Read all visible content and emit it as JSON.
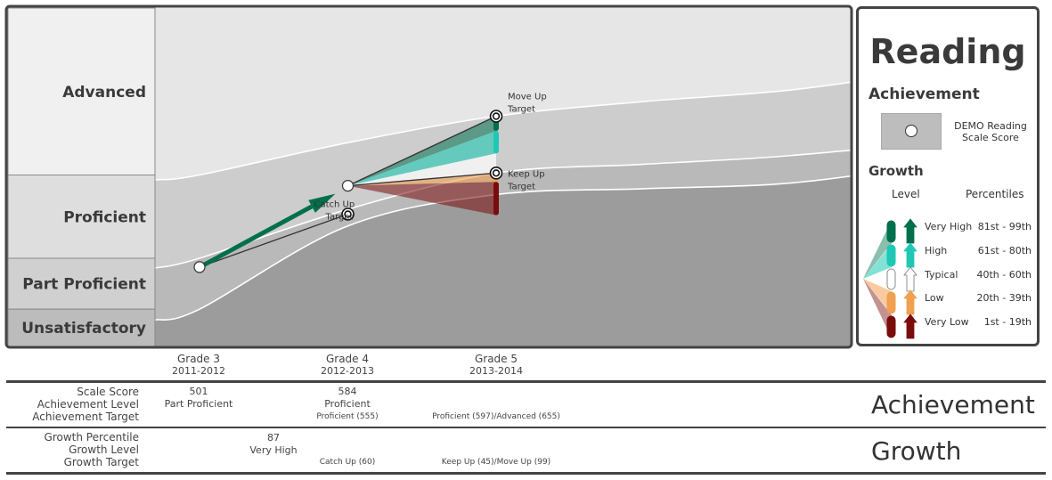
{
  "chart_data": {
    "type": "area",
    "subject": "Reading",
    "achievement_levels": [
      "Advanced",
      "Proficient",
      "Part Proficient",
      "Unsatisfactory"
    ],
    "grades": [
      {
        "label": "Grade 3",
        "year": "2011-2012"
      },
      {
        "label": "Grade 4",
        "year": "2012-2013"
      },
      {
        "label": "Grade 5",
        "year": "2013-2014"
      }
    ],
    "band_cut_scores": {
      "x": [
        2.7,
        3.0,
        4.0,
        5.0,
        6.0,
        7.0,
        8.0,
        9.0,
        9.3
      ],
      "unsat_part": [
        447,
        458,
        543,
        575,
        581,
        587,
        608,
        633,
        633
      ],
      "part_prof": [
        500,
        510,
        560,
        597,
        606,
        615,
        632,
        666,
        666
      ],
      "prof_adv": [
        590,
        595,
        628,
        655,
        670,
        682,
        703,
        721,
        721
      ]
    },
    "scale_scores": [
      {
        "grade": 3,
        "score": 501
      },
      {
        "grade": 4,
        "score": 584
      }
    ],
    "targets": [
      {
        "grade": 4,
        "score": 555,
        "label": "Catch Up Target"
      },
      {
        "grade": 5,
        "score": 655,
        "label": "Move Up Target"
      },
      {
        "grade": 5,
        "score": 597,
        "label": "Keep Up Target"
      }
    ],
    "growth_fan": [
      {
        "level": "Very High",
        "from": 640,
        "to": 655,
        "color": "#006f4c"
      },
      {
        "level": "High",
        "from": 617,
        "to": 640,
        "color": "#1ec8b4"
      },
      {
        "level": "Typical",
        "from": 597,
        "to": 617,
        "color": "#ffffff"
      },
      {
        "level": "Low",
        "from": 588,
        "to": 597,
        "color": "#f0a050"
      },
      {
        "level": "Very Low",
        "from": 554,
        "to": 588,
        "color": "#7a0c0c"
      }
    ],
    "ylim": [
      420,
      740
    ]
  },
  "legend": {
    "title": "Reading",
    "achievement_heading": "Achievement",
    "scale_score_label": "DEMO Reading Scale Score",
    "growth_heading": "Growth",
    "level_header": "Level",
    "percentiles_header": "Percentiles",
    "levels": [
      {
        "name": "Very High",
        "percentiles": "81st  - 99th",
        "color": "#006f4c"
      },
      {
        "name": "High",
        "percentiles": "61st - 80th",
        "color": "#1ec8b4"
      },
      {
        "name": "Typical",
        "percentiles": "40th - 60th",
        "color": "#ffffff"
      },
      {
        "name": "Low",
        "percentiles": "20th - 39th",
        "color": "#f0a050"
      },
      {
        "name": "Very Low",
        "percentiles": "1st - 19th",
        "color": "#7a0c0c"
      }
    ]
  },
  "table": {
    "achievement_section": "Achievement",
    "growth_section": "Growth",
    "row_labels": {
      "scale_score": "Scale Score",
      "achievement_level": "Achievement Level",
      "achievement_target": "Achievement Target",
      "growth_percentile": "Growth Percentile",
      "growth_level": "Growth Level",
      "growth_target": "Growth Target"
    },
    "grade3": {
      "scale_score": "501",
      "achievement_level": "Part Proficient"
    },
    "grade4": {
      "scale_score": "584",
      "achievement_level": "Proficient",
      "achievement_target": "Proficient (555)",
      "growth_target": "Catch Up (60)"
    },
    "grade5": {
      "achievement_target": "Proficient (597)/Advanced (655)",
      "growth_target": "Keep Up (45)/Move Up (99)"
    },
    "growth_3_to_4": {
      "percentile": "87",
      "level": "Very High"
    }
  },
  "colors": {
    "advanced": "#e6e6e6",
    "proficient": "#cdcdcd",
    "part_proficient": "#b9b9b9",
    "unsatisfactory": "#9c9c9c",
    "growth_arrow": "#006f4c",
    "frame": "#444444"
  }
}
